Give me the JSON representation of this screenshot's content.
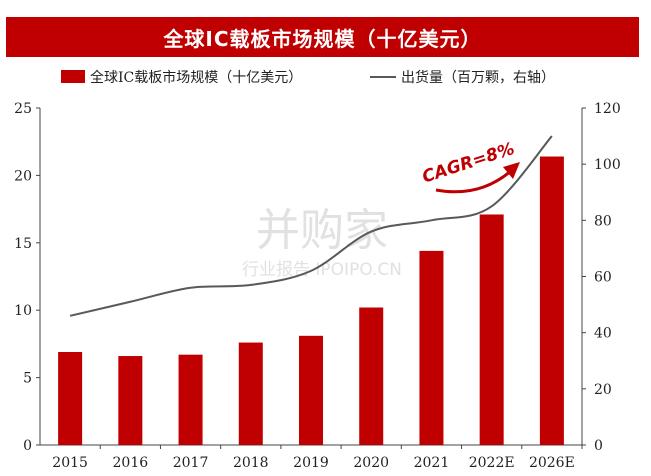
{
  "title": "全球IC载板市场规模（十亿美元）",
  "watermark": {
    "main": "并购家",
    "sub": "行业报告 IPOIPO.CN"
  },
  "annotation": "CAGR=8%",
  "colors": {
    "bar": "#c00000",
    "line": "#595959",
    "title_bg": "#c00000",
    "annotation": "#c00000"
  },
  "chart_data": {
    "type": "bar",
    "categories": [
      "2015",
      "2016",
      "2017",
      "2018",
      "2019",
      "2020",
      "2021",
      "2022E",
      "2026E"
    ],
    "series": [
      {
        "name": "全球IC载板市场规模（十亿美元）",
        "type": "bar",
        "axis": "left",
        "values": [
          6.9,
          6.6,
          6.7,
          7.6,
          8.1,
          10.2,
          14.4,
          17.1,
          21.4
        ]
      },
      {
        "name": "出货量（百万颗，右轴）",
        "type": "line",
        "axis": "right",
        "values": [
          46,
          51,
          56,
          57,
          62,
          76,
          80,
          85,
          110
        ]
      }
    ],
    "ylim": [
      0,
      25
    ],
    "yticks": [
      "0",
      "5",
      "10",
      "15",
      "20",
      "25"
    ],
    "y2lim": [
      0,
      120
    ],
    "y2ticks": [
      "0",
      "20",
      "40",
      "60",
      "80",
      "100",
      "120"
    ],
    "legend": "top",
    "grid": false
  }
}
